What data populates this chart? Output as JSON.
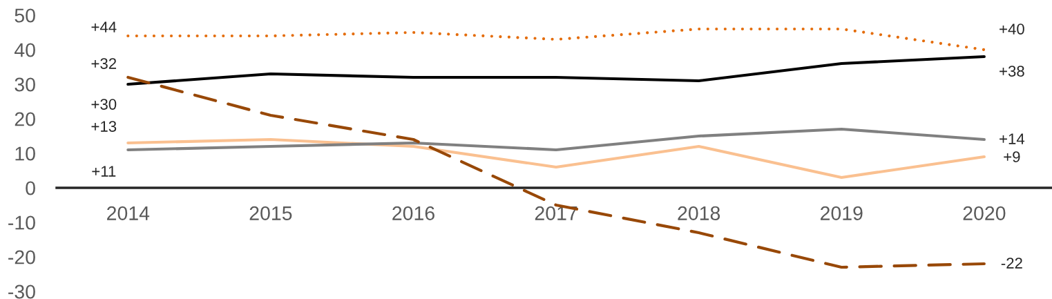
{
  "chart_data": {
    "type": "line",
    "categories": [
      "2014",
      "2015",
      "2016",
      "2017",
      "2018",
      "2019",
      "2020"
    ],
    "ylim": [
      -30,
      50
    ],
    "yticks": [
      -30,
      -20,
      -10,
      0,
      10,
      20,
      30,
      40,
      50
    ],
    "series": [
      {
        "color": "#fac090",
        "line_style": "solid",
        "values": [
          13,
          14,
          12,
          6,
          12,
          3,
          9
        ],
        "value_labels": [
          "+13",
          null,
          null,
          null,
          null,
          null,
          "+9"
        ]
      },
      {
        "color": "#808080",
        "line_style": "solid",
        "values": [
          11,
          12,
          13,
          11,
          15,
          17,
          14
        ],
        "value_labels": [
          "+11",
          null,
          null,
          null,
          null,
          null,
          "+14"
        ]
      },
      {
        "color": "#000000",
        "line_style": "solid",
        "values": [
          30,
          33,
          32,
          32,
          31,
          36,
          38
        ],
        "value_labels": [
          "+30",
          null,
          null,
          null,
          null,
          null,
          "+38"
        ]
      },
      {
        "color": "#984807",
        "line_style": "dashed",
        "values": [
          32,
          21,
          14,
          -5,
          -13,
          -23,
          -22
        ],
        "value_labels": [
          "+32",
          null,
          null,
          null,
          null,
          null,
          "-22"
        ]
      },
      {
        "color": "#e46c0a",
        "line_style": "dotted",
        "values": [
          44,
          44,
          45,
          43,
          46,
          46,
          40
        ],
        "value_labels": [
          "+44",
          null,
          null,
          null,
          null,
          null,
          "+40"
        ]
      }
    ]
  }
}
